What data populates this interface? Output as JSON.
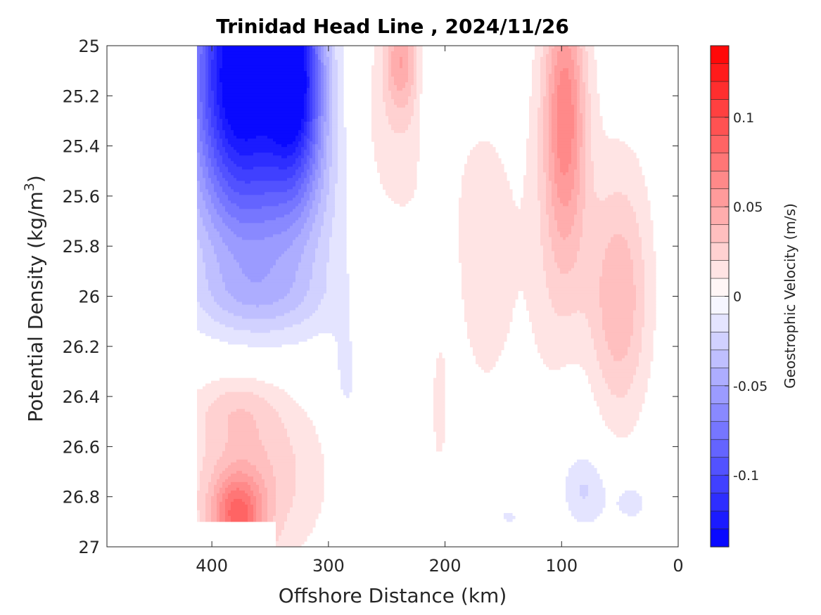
{
  "chart_data": {
    "type": "heatmap",
    "subtype": "filled-contour",
    "title": "Trinidad Head Line , 2024/11/26",
    "xlabel": "Offshore Distance (km)",
    "ylabel_prefix": "Potential Density (kg/m",
    "ylabel_sup": "3",
    "ylabel_suffix": ")",
    "colorbar_label": "Geostrophic Velocity (m/s)",
    "xlim": [
      490,
      0
    ],
    "x_reversed": true,
    "ylim": [
      25,
      27
    ],
    "y_reversed": true,
    "x_ticks": [
      400,
      300,
      200,
      100,
      0
    ],
    "x_tick_labels": [
      "400",
      "300",
      "200",
      "100",
      "0"
    ],
    "y_ticks": [
      25,
      25.2,
      25.4,
      25.6,
      25.8,
      26,
      26.2,
      26.4,
      26.6,
      26.8,
      27
    ],
    "y_tick_labels": [
      "25",
      "25.2",
      "25.4",
      "25.6",
      "25.8",
      "26",
      "26.2",
      "26.4",
      "26.6",
      "26.8",
      "27"
    ],
    "color_limits": [
      -0.14,
      0.14
    ],
    "color_levels": 28,
    "colorbar_ticks": [
      -0.1,
      -0.05,
      0,
      0.05,
      0.1
    ],
    "colorbar_tick_labels": [
      "-0.1",
      "-0.05",
      "0",
      "0.05",
      "0.1"
    ],
    "colormap": {
      "negative": "#0000ff",
      "zero": "#ffffff",
      "positive": "#ff0000"
    },
    "blobs": [
      {
        "feature": "core jet",
        "x": 378,
        "y": 25.05,
        "rx": 40,
        "ry": 0.55,
        "value": -0.13
      },
      {
        "feature": "core jet",
        "x": 328,
        "y": 25.1,
        "rx": 24,
        "ry": 0.45,
        "value": -0.11
      },
      {
        "feature": "core jet",
        "x": 355,
        "y": 25.55,
        "rx": 65,
        "ry": 0.55,
        "value": -0.045
      },
      {
        "feature": "core jet",
        "x": 360,
        "y": 26.0,
        "rx": 58,
        "ry": 0.15,
        "value": -0.018
      },
      {
        "feature": "jet",
        "x": 238,
        "y": 25.05,
        "rx": 14,
        "ry": 0.2,
        "value": 0.04
      },
      {
        "feature": "jet",
        "x": 245,
        "y": 25.35,
        "rx": 42,
        "ry": 0.45,
        "value": 0.018
      },
      {
        "feature": "jet",
        "x": 215,
        "y": 25.25,
        "rx": 8,
        "ry": 0.32,
        "value": -0.012
      },
      {
        "feature": "jet",
        "x": 97,
        "y": 25.25,
        "rx": 17,
        "ry": 0.5,
        "value": 0.052
      },
      {
        "feature": "jet",
        "x": 100,
        "y": 25.75,
        "rx": 28,
        "ry": 0.95,
        "value": 0.022
      },
      {
        "feature": "jet",
        "x": 165,
        "y": 25.85,
        "rx": 30,
        "ry": 0.65,
        "value": 0.016
      },
      {
        "feature": "jet",
        "x": 52,
        "y": 26.05,
        "rx": 25,
        "ry": 0.45,
        "value": 0.028
      },
      {
        "feature": "jet",
        "x": 45,
        "y": 25.85,
        "rx": 28,
        "ry": 0.6,
        "value": 0.012
      },
      {
        "feature": "deep",
        "x": 378,
        "y": 26.88,
        "rx": 22,
        "ry": 0.17,
        "value": 0.065
      },
      {
        "feature": "deep",
        "x": 365,
        "y": 26.7,
        "rx": 60,
        "ry": 0.38,
        "value": 0.03
      },
      {
        "feature": "deep",
        "x": 380,
        "y": 26.45,
        "rx": 35,
        "ry": 0.13,
        "value": 0.014
      },
      {
        "feature": "deep",
        "x": 285,
        "y": 26.35,
        "rx": 13,
        "ry": 0.25,
        "value": -0.012
      },
      {
        "feature": "deep",
        "x": 205,
        "y": 26.45,
        "rx": 9,
        "ry": 0.35,
        "value": 0.012
      },
      {
        "feature": "deep",
        "x": 80,
        "y": 26.78,
        "rx": 20,
        "ry": 0.15,
        "value": -0.02
      },
      {
        "feature": "deep",
        "x": 92,
        "y": 26.5,
        "rx": 24,
        "ry": 0.42,
        "value": -0.011
      },
      {
        "feature": "deep",
        "x": 40,
        "y": 26.82,
        "rx": 18,
        "ry": 0.1,
        "value": -0.015
      },
      {
        "feature": "deep",
        "x": 145,
        "y": 26.88,
        "rx": 18,
        "ry": 0.06,
        "value": -0.012
      }
    ],
    "mask": {
      "description": "data undefined below sigma 26.9 except near 300-340 km",
      "y_cut": 26.9,
      "exceptions": [
        [
          300,
          345
        ]
      ]
    }
  }
}
